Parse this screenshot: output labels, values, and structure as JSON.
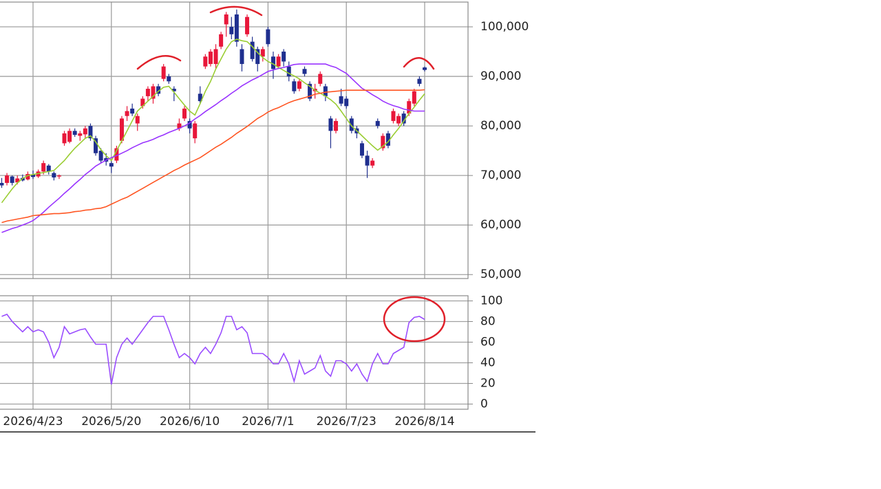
{
  "chart_data": [
    {
      "type": "candlestick",
      "categories": [
        null,
        null,
        null,
        null,
        null,
        null,
        "2026/4/23",
        null,
        null,
        null,
        null,
        null,
        null,
        null,
        null,
        null,
        null,
        null,
        null,
        null,
        null,
        "2026/5/20",
        null,
        null,
        null,
        null,
        null,
        null,
        null,
        null,
        null,
        null,
        null,
        null,
        null,
        null,
        "2026/6/10",
        null,
        null,
        null,
        null,
        null,
        null,
        null,
        null,
        null,
        null,
        null,
        null,
        null,
        null,
        "2026/7/1",
        null,
        null,
        null,
        null,
        null,
        null,
        null,
        null,
        null,
        null,
        null,
        null,
        null,
        null,
        "2026/7/23",
        null,
        null,
        null,
        null,
        null,
        null,
        null,
        null,
        null,
        null,
        null,
        null,
        null,
        null,
        "2026/8/14"
      ],
      "open": [
        68500,
        68500,
        69800,
        68600,
        69500,
        69200,
        70200,
        69800,
        70800,
        72000,
        70500,
        69800,
        76500,
        76800,
        79000,
        78000,
        78300,
        80000,
        77500,
        75000,
        73500,
        72500,
        73000,
        77000,
        82000,
        83500,
        80500,
        84000,
        86000,
        85500,
        88000,
        89500,
        90000,
        87500,
        79500,
        81500,
        81000,
        77500,
        86500,
        92000,
        92500,
        92500,
        96000,
        100500,
        100000,
        102500,
        95500,
        98500,
        97000,
        95500,
        94000,
        99500,
        94000,
        92000,
        95000,
        92000,
        89000,
        87500,
        91500,
        88500,
        87000,
        88500,
        88000,
        81500,
        79000,
        86000,
        85500,
        81500,
        79500,
        76500,
        74000,
        72000,
        81000,
        75500,
        78500,
        81000,
        80500,
        82500,
        82500,
        84500,
        89500,
        91800
      ],
      "high": [
        69500,
        70500,
        70000,
        70000,
        70200,
        70800,
        71000,
        71200,
        73000,
        72300,
        70800,
        70200,
        79000,
        79500,
        79500,
        79000,
        80000,
        80500,
        78000,
        75500,
        74500,
        73000,
        76000,
        82000,
        84000,
        84500,
        82500,
        86000,
        88000,
        88500,
        88500,
        92500,
        90500,
        88000,
        81500,
        84000,
        81500,
        81000,
        88000,
        94500,
        95500,
        96500,
        99000,
        103000,
        102000,
        103500,
        96500,
        102500,
        98000,
        96000,
        96000,
        100000,
        95000,
        94500,
        95500,
        93000,
        89500,
        89500,
        92000,
        89000,
        88500,
        91000,
        88500,
        82000,
        81500,
        87500,
        86000,
        82000,
        80000,
        77000,
        75000,
        73500,
        81500,
        78500,
        79000,
        83500,
        82500,
        83000,
        85500,
        87500,
        90000,
        92000
      ],
      "low": [
        67500,
        68000,
        68000,
        68200,
        68800,
        69000,
        69300,
        69500,
        70200,
        70200,
        69000,
        69300,
        76000,
        76500,
        77800,
        77000,
        77500,
        77000,
        74000,
        72500,
        72000,
        70500,
        72500,
        76500,
        81000,
        82000,
        79000,
        83500,
        85000,
        84500,
        86000,
        89000,
        88500,
        85000,
        79000,
        81000,
        78500,
        76500,
        84500,
        91500,
        92000,
        91500,
        95500,
        98000,
        97500,
        96000,
        91000,
        98000,
        93000,
        91000,
        93000,
        96000,
        89500,
        91500,
        92000,
        89000,
        86500,
        87000,
        90000,
        85000,
        85500,
        88000,
        85000,
        75500,
        78500,
        84000,
        83500,
        78500,
        77500,
        73500,
        69500,
        71500,
        79500,
        75000,
        75500,
        80500,
        80000,
        80000,
        82000,
        84000,
        88000,
        91000
      ],
      "close": [
        68000,
        70000,
        68500,
        69400,
        69000,
        70300,
        69700,
        70800,
        72500,
        70800,
        69600,
        70000,
        78500,
        79000,
        78200,
        78500,
        79500,
        77500,
        74500,
        73000,
        72800,
        71800,
        75500,
        81500,
        83000,
        82500,
        82000,
        85500,
        87500,
        88000,
        86500,
        92000,
        89000,
        87000,
        80500,
        83500,
        79500,
        80500,
        85000,
        94000,
        95000,
        95500,
        98500,
        102500,
        98500,
        97000,
        92500,
        102000,
        93500,
        92500,
        95500,
        96500,
        91500,
        94000,
        93000,
        90000,
        87000,
        89000,
        90500,
        85500,
        87500,
        90500,
        86000,
        79000,
        81000,
        84500,
        84000,
        79000,
        78500,
        74000,
        72000,
        73000,
        80000,
        78000,
        76000,
        83000,
        82000,
        80500,
        85000,
        87000,
        88500,
        91300
      ],
      "up_color": "#e8173a",
      "down_color": "#1f2f8f",
      "lines": [
        {
          "color": "#9acd32",
          "values": [
            64500,
            65900,
            67300,
            68500,
            69400,
            70000,
            70200,
            70400,
            70600,
            70800,
            71000,
            72000,
            73000,
            74300,
            75500,
            76500,
            77500,
            78000,
            76800,
            75200,
            74000,
            73000,
            75000,
            77000,
            79000,
            81000,
            83000,
            84000,
            85000,
            86000,
            87000,
            87800,
            88000,
            86800,
            85500,
            84200,
            83000,
            82200,
            84500,
            87000,
            89000,
            91500,
            93500,
            95500,
            97000,
            97500,
            97200,
            97000,
            96000,
            94800,
            93800,
            93000,
            92500,
            91800,
            91200,
            90600,
            90100,
            89500,
            88700,
            88000,
            87200,
            86600,
            86000,
            85300,
            84400,
            83000,
            81500,
            80000,
            79000,
            78000,
            77000,
            76000,
            75100,
            75900,
            76800,
            78200,
            79500,
            81000,
            82500,
            83800,
            85200,
            86500
          ]
        },
        {
          "color": "#9933ff",
          "values": [
            58500,
            58900,
            59300,
            59600,
            60000,
            60400,
            60900,
            61700,
            62600,
            63600,
            64500,
            65400,
            66400,
            67300,
            68300,
            69200,
            70200,
            71000,
            71900,
            72500,
            73100,
            73600,
            74000,
            74500,
            75000,
            75600,
            76100,
            76600,
            76900,
            77300,
            77800,
            78200,
            78700,
            79100,
            79500,
            80000,
            80600,
            81400,
            82100,
            82900,
            83600,
            84300,
            85100,
            85800,
            86600,
            87300,
            88100,
            88700,
            89300,
            89800,
            90400,
            91000,
            91300,
            91600,
            91800,
            92100,
            92400,
            92500,
            92500,
            92500,
            92500,
            92500,
            92500,
            92100,
            91800,
            91200,
            90600,
            89600,
            88600,
            87600,
            87000,
            86300,
            85700,
            85000,
            84500,
            84100,
            83800,
            83400,
            83200,
            83000,
            83000,
            83000
          ]
        },
        {
          "color": "#ff5522",
          "values": [
            60500,
            60800,
            61000,
            61200,
            61400,
            61600,
            61900,
            62000,
            62100,
            62200,
            62300,
            62300,
            62400,
            62500,
            62700,
            62800,
            63000,
            63100,
            63300,
            63400,
            63700,
            64200,
            64700,
            65200,
            65600,
            66200,
            66800,
            67400,
            68000,
            68600,
            69200,
            69800,
            70400,
            71000,
            71500,
            72100,
            72600,
            73100,
            73600,
            74300,
            75000,
            75700,
            76300,
            77000,
            77700,
            78500,
            79200,
            79900,
            80700,
            81500,
            82100,
            82800,
            83300,
            83700,
            84200,
            84700,
            85100,
            85400,
            85700,
            86000,
            86400,
            86600,
            86800,
            86900,
            87000,
            87100,
            87200,
            87200,
            87200,
            87200,
            87200,
            87200,
            87200,
            87200,
            87200,
            87200,
            87200,
            87200,
            87200,
            87200,
            87200,
            87300
          ]
        }
      ],
      "ylim": [
        49200,
        105000
      ],
      "yticks": [
        {
          "value": 50000,
          "label": "50,000"
        },
        {
          "value": 60000,
          "label": "60,000"
        },
        {
          "value": 70000,
          "label": "70,000"
        },
        {
          "value": 80000,
          "label": "80,000"
        },
        {
          "value": 90000,
          "label": "90,000"
        },
        {
          "value": 100000,
          "label": "100,000"
        }
      ],
      "grid": true
    },
    {
      "type": "line",
      "values": [
        85,
        87,
        80,
        75,
        70,
        75,
        70,
        72,
        70,
        60,
        45,
        55,
        75,
        68,
        70,
        72,
        73,
        65,
        58,
        58,
        58,
        19,
        45,
        58,
        64,
        58,
        65,
        72,
        79,
        85,
        85,
        85,
        72,
        58,
        45,
        49,
        45,
        39,
        49,
        55,
        49,
        58,
        69,
        85,
        85,
        72,
        75,
        69,
        49,
        49,
        49,
        45,
        39,
        39,
        49,
        39,
        22,
        42,
        29,
        32,
        35,
        47,
        32,
        27,
        42,
        42,
        39,
        32,
        39,
        29,
        22,
        39,
        49,
        39,
        39,
        49,
        52,
        55,
        79,
        84,
        85,
        82
      ],
      "color": "#9a4dff",
      "ylim": [
        -5,
        105
      ],
      "yticks": [
        0,
        20,
        40,
        60,
        80,
        100
      ],
      "grid": true
    }
  ]
}
